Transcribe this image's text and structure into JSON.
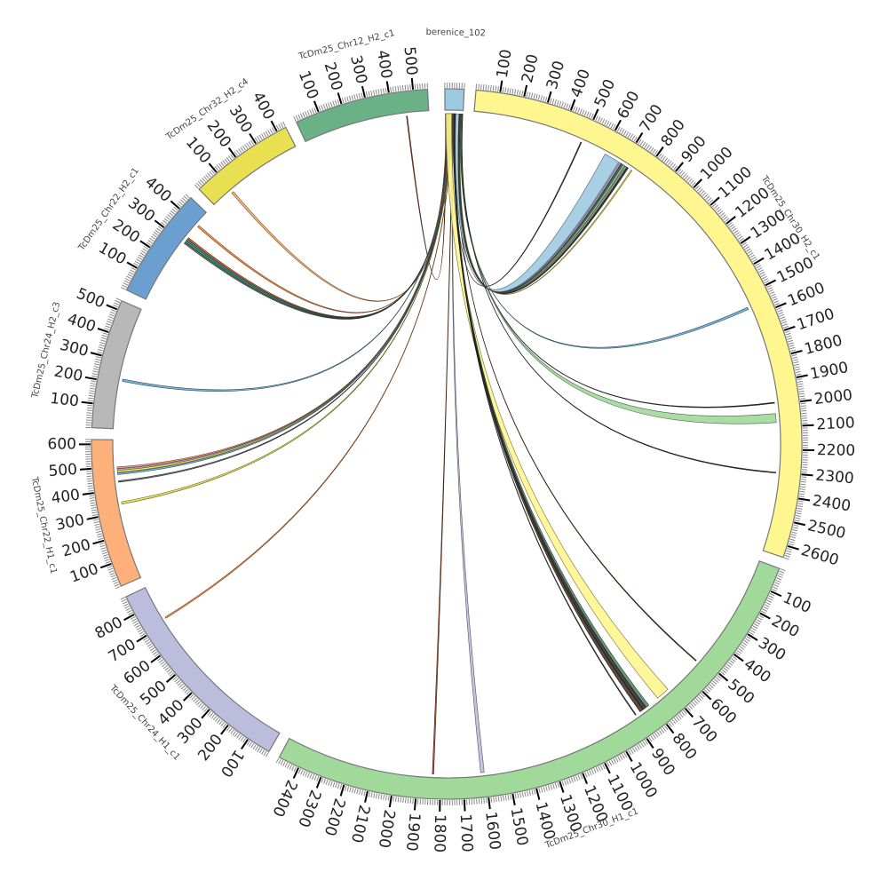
{
  "chart_data": {
    "type": "circos",
    "units_per_degree_note": "segments laid clockwise from top",
    "segments": [
      {
        "id": "berenice",
        "label": "berenice_102",
        "length": 80,
        "color": "#9ecae1",
        "ticks": []
      },
      {
        "id": "h2c1",
        "label": "TcDm25_Chr30_H2_c1",
        "length": 2650,
        "color": "#fff68f",
        "ticks": [
          100,
          200,
          300,
          400,
          500,
          600,
          700,
          800,
          900,
          1000,
          1100,
          1200,
          1300,
          1400,
          1500,
          1600,
          1700,
          1800,
          1900,
          2000,
          2100,
          2200,
          2300,
          2400,
          2500,
          2600
        ]
      },
      {
        "id": "h1c1",
        "label": "TcDm25_Chr30_H1_c1",
        "length": 2490,
        "color": "#a1d99b",
        "ticks": [
          100,
          200,
          300,
          400,
          500,
          600,
          700,
          800,
          900,
          1000,
          1100,
          1200,
          1300,
          1400,
          1500,
          1600,
          1700,
          1800,
          1900,
          2000,
          2100,
          2200,
          2300,
          2400
        ]
      },
      {
        "id": "chr24h1",
        "label": "TcDm25_Chr24_H1_c1",
        "length": 880,
        "color": "#bcbddc",
        "ticks": [
          100,
          200,
          300,
          400,
          500,
          600,
          700,
          800
        ]
      },
      {
        "id": "chr22h1",
        "label": "TcDm25_Chr22_H1_c1",
        "length": 620,
        "color": "#fdb07a",
        "ticks": [
          100,
          200,
          300,
          400,
          500,
          600
        ]
      },
      {
        "id": "chr24h2",
        "label": "TcDm25_Chr24_H2_c3",
        "length": 540,
        "color": "#b8b8b8",
        "ticks": [
          100,
          200,
          300,
          400,
          500
        ]
      },
      {
        "id": "chr22h2",
        "label": "TcDm25_Chr22_H2_c1",
        "length": 465,
        "color": "#6a9fd0",
        "ticks": [
          100,
          200,
          300,
          400
        ]
      },
      {
        "id": "chr32h2",
        "label": "TcDm25_Chr32_H2_c4",
        "length": 440,
        "color": "#e8e050",
        "ticks": [
          100,
          200,
          300,
          400
        ]
      },
      {
        "id": "chr12h2",
        "label": "TcDm25_Chr12_H2_c1",
        "length": 560,
        "color": "#6ab187",
        "ticks": [
          100,
          200,
          300,
          400,
          500
        ]
      }
    ],
    "links": [
      {
        "s": [
          2,
          5
        ],
        "t": "chr12h2",
        "r": [
          460,
          464
        ],
        "color": "#8c4a2a"
      },
      {
        "s": [
          5,
          8
        ],
        "t": "chr32h2",
        "r": [
          92,
          102
        ],
        "color": "#fdae6b"
      },
      {
        "s": [
          8,
          10
        ],
        "t": "chr22h2",
        "r": [
          393,
          401
        ],
        "color": "#fd8d3c"
      },
      {
        "s": [
          10,
          12
        ],
        "t": "chr22h2",
        "r": [
          322,
          330
        ],
        "color": "#e6550d"
      },
      {
        "s": [
          12,
          14
        ],
        "t": "chr22h2",
        "r": [
          314,
          322
        ],
        "color": "#3182bd"
      },
      {
        "s": [
          14,
          16
        ],
        "t": "chr22h2",
        "r": [
          306,
          314
        ],
        "color": "#31a354"
      },
      {
        "s": [
          16,
          18
        ],
        "t": "chr22h2",
        "r": [
          298,
          306
        ],
        "color": "#636363"
      },
      {
        "s": [
          18,
          20
        ],
        "t": "chr24h2",
        "r": [
          212,
          222
        ],
        "color": "#6baed6"
      },
      {
        "s": [
          20,
          22
        ],
        "t": "chr22h1",
        "r": [
          492,
          500
        ],
        "color": "#fc9272"
      },
      {
        "s": [
          22,
          24
        ],
        "t": "chr22h1",
        "r": [
          484,
          492
        ],
        "color": "#9e9ac8"
      },
      {
        "s": [
          24,
          26
        ],
        "t": "chr22h1",
        "r": [
          476,
          484
        ],
        "color": "#ffeb3b"
      },
      {
        "s": [
          26,
          28
        ],
        "t": "chr22h1",
        "r": [
          466,
          474
        ],
        "color": "#6baed6"
      },
      {
        "s": [
          28,
          30
        ],
        "t": "chr22h1",
        "r": [
          432,
          438
        ],
        "color": "#636363"
      },
      {
        "s": [
          30,
          32
        ],
        "t": "chr22h1",
        "r": [
          334,
          344
        ],
        "color": "#e8e050"
      },
      {
        "s": [
          32,
          34
        ],
        "t": "chr24h1",
        "r": [
          718,
          724
        ],
        "color": "#fd8d3c"
      },
      {
        "s": [
          34,
          36
        ],
        "t": "h1c1",
        "r": [
          1830,
          1836
        ],
        "color": "#a0522d"
      },
      {
        "s": [
          36,
          39
        ],
        "t": "h1c1",
        "r": [
          1606,
          1622
        ],
        "color": "#bcbddc"
      },
      {
        "s": [
          4,
          30
        ],
        "t": "h1c1",
        "r": [
          700,
          760
        ],
        "color": "#fff68f"
      },
      {
        "s": [
          39,
          41
        ],
        "t": "h1c1",
        "r": [
          842,
          858
        ],
        "color": "#4a3728"
      },
      {
        "s": [
          41,
          43
        ],
        "t": "h1c1",
        "r": [
          826,
          840
        ],
        "color": "#333333"
      },
      {
        "s": [
          43,
          45
        ],
        "t": "h1c1",
        "r": [
          810,
          824
        ],
        "color": "#5a8a6a"
      },
      {
        "s": [
          45,
          46
        ],
        "t": "h1c1",
        "r": [
          880,
          884
        ],
        "color": "#444444"
      },
      {
        "s": [
          46,
          47
        ],
        "t": "h1c1",
        "r": [
          520,
          524
        ],
        "color": "#5c2a1a"
      },
      {
        "s": [
          47,
          48
        ],
        "t": "h2c1",
        "r": [
          490,
          494
        ],
        "color": "#333333"
      },
      {
        "s": [
          48,
          62
        ],
        "t": "h2c1",
        "r": [
          610,
          680
        ],
        "color": "#9ecae1"
      },
      {
        "s": [
          62,
          64
        ],
        "t": "h2c1",
        "r": [
          684,
          692
        ],
        "color": "#9e9ac8"
      },
      {
        "s": [
          64,
          66
        ],
        "t": "h2c1",
        "r": [
          694,
          702
        ],
        "color": "#555555"
      },
      {
        "s": [
          66,
          68
        ],
        "t": "h2c1",
        "r": [
          702,
          712
        ],
        "color": "#74c476"
      },
      {
        "s": [
          68,
          70
        ],
        "t": "h2c1",
        "r": [
          712,
          722
        ],
        "color": "#888888"
      },
      {
        "s": [
          70,
          71
        ],
        "t": "h2c1",
        "r": [
          724,
          730
        ],
        "color": "#333333"
      },
      {
        "s": [
          71,
          72
        ],
        "t": "h2c1",
        "r": [
          745,
          750
        ],
        "color": "#e8e050"
      },
      {
        "s": [
          72,
          74
        ],
        "t": "h2c1",
        "r": [
          1552,
          1562
        ],
        "color": "#6baed6"
      },
      {
        "s": [
          74,
          75
        ],
        "t": "h2c1",
        "r": [
          1990,
          1994
        ],
        "color": "#333333"
      },
      {
        "s": [
          75,
          78
        ],
        "t": "h2c1",
        "r": [
          2040,
          2080
        ],
        "color": "#a1d99b"
      },
      {
        "s": [
          78,
          79
        ],
        "t": "h2c1",
        "r": [
          2300,
          2304
        ],
        "color": "#333333"
      }
    ]
  }
}
